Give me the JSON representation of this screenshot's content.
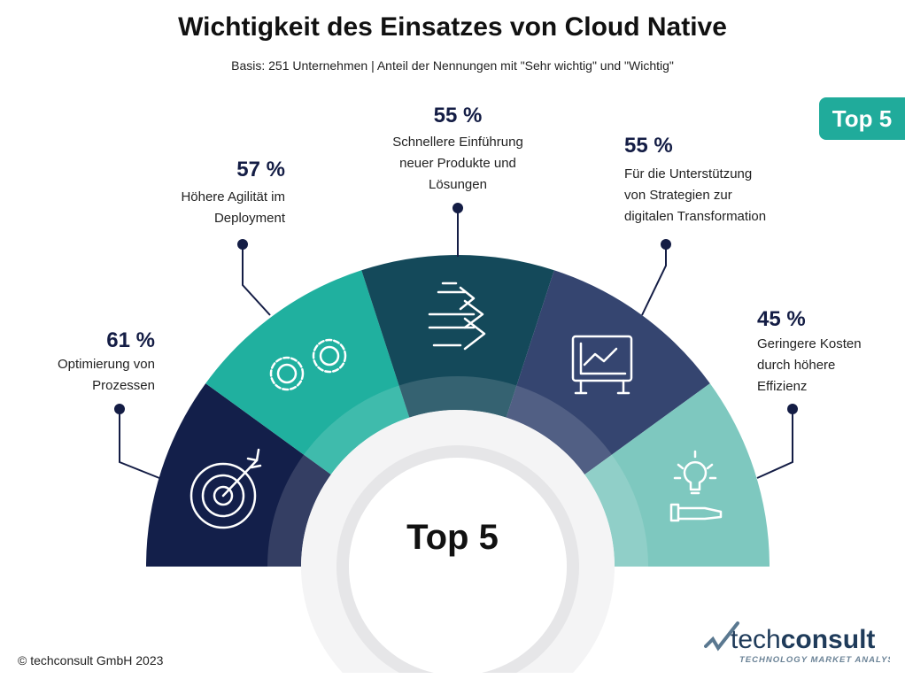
{
  "title": "Wichtigkeit des Einsatzes von Cloud Native",
  "subtitle": "Basis: 251 Unternehmen | Anteil der Nennungen mit \"Sehr wichtig\" und \"Wichtig\"",
  "badge": "Top 5",
  "center_label": "Top 5",
  "footer": "© techconsult GmbH 2023",
  "logo": {
    "text": "techconsult",
    "tagline": "TECHNOLOGY MARKET ANALYSTS"
  },
  "chart_data": {
    "type": "semicircle-segments",
    "title": "Wichtigkeit des Einsatzes von Cloud Native",
    "unit": "%",
    "items": [
      {
        "value": 61,
        "pct": "61 %",
        "label1": "Optimierung von",
        "label2": "Prozessen",
        "label3": "",
        "color": "#131f4a",
        "icon": "target-icon"
      },
      {
        "value": 57,
        "pct": "57 %",
        "label1": "Höhere Agilität im",
        "label2": "Deployment",
        "label3": "",
        "color": "#20b09f",
        "icon": "gears-icon"
      },
      {
        "value": 55,
        "pct": "55 %",
        "label1": "Schnellere Einführung",
        "label2": "neuer Produkte und",
        "label3": "Lösungen",
        "color": "#14495a",
        "icon": "fast-arrows-icon"
      },
      {
        "value": 55,
        "pct": "55 %",
        "label1": "Für die Unterstützung",
        "label2": "von Strategien zur",
        "label3": "digitalen Transformation",
        "color": "#354570",
        "icon": "chart-board-icon"
      },
      {
        "value": 45,
        "pct": "45 %",
        "label1": "Geringere Kosten",
        "label2": "durch höhere",
        "label3": "Effizienz",
        "color": "#7ec8bf",
        "icon": "lightbulb-hand-icon"
      }
    ]
  }
}
